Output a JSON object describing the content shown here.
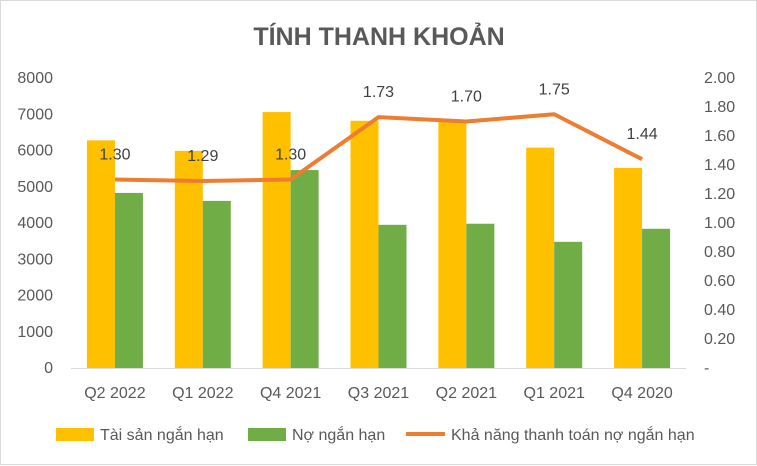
{
  "chart_data": {
    "type": "bar",
    "title": "TÍNH THANH KHOẢN",
    "categories": [
      "Q2 2022",
      "Q1 2022",
      "Q4 2021",
      "Q3 2021",
      "Q2 2021",
      "Q1 2021",
      "Q4 2020"
    ],
    "series": [
      {
        "name": "Tài sản ngắn hạn",
        "type": "bar",
        "axis": "left",
        "color": "#FFC000",
        "values": [
          6280,
          5990,
          7060,
          6820,
          6790,
          6080,
          5520
        ]
      },
      {
        "name": "Nợ ngắn hạn",
        "type": "bar",
        "axis": "left",
        "color": "#70AD47",
        "values": [
          4830,
          4610,
          5460,
          3950,
          3980,
          3480,
          3840
        ]
      },
      {
        "name": "Khả năng thanh toán nợ ngắn hạn",
        "type": "line",
        "axis": "right",
        "color": "#ED7D31",
        "values": [
          1.3,
          1.29,
          1.3,
          1.73,
          1.7,
          1.75,
          1.44
        ],
        "labels": [
          "1.30",
          "1.29",
          "1.30",
          "1.73",
          "1.70",
          "1.75",
          "1.44"
        ]
      }
    ],
    "y_left": {
      "min": 0,
      "max": 8000,
      "step": 1000,
      "tick_labels": [
        "0",
        "1000",
        "2000",
        "3000",
        "4000",
        "5000",
        "6000",
        "7000",
        "8000"
      ]
    },
    "y_right": {
      "min": 0,
      "max": 2.0,
      "step": 0.2,
      "tick_labels": [
        "-",
        "0.20",
        "0.40",
        "0.60",
        "0.80",
        "1.00",
        "1.20",
        "1.40",
        "1.60",
        "1.80",
        "2.00"
      ]
    },
    "grid": false,
    "legend_position": "bottom"
  }
}
